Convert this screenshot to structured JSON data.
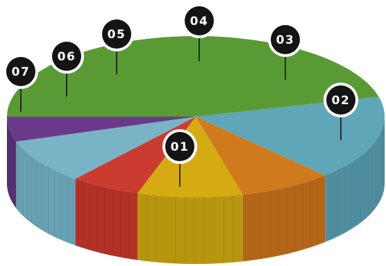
{
  "chart_data": {
    "type": "pie",
    "style": "3d-exploded-pie",
    "categories": [
      "01",
      "02",
      "03",
      "04",
      "05",
      "06",
      "07"
    ],
    "colors": [
      "#5a9a35",
      "#5ea6b8",
      "#d07a1e",
      "#d4ab12",
      "#cc3b2f",
      "#79b4c6",
      "#6a3a8a"
    ],
    "side_colors": [
      "#4a8a2c",
      "#4f8ea1",
      "#b3661a",
      "#b8950f",
      "#b23027",
      "#66a0b2",
      "#583073"
    ],
    "values": [
      46,
      17,
      8,
      9,
      6,
      9,
      5
    ],
    "callouts": [
      "01",
      "02",
      "03",
      "04",
      "05",
      "06",
      "07"
    ]
  }
}
